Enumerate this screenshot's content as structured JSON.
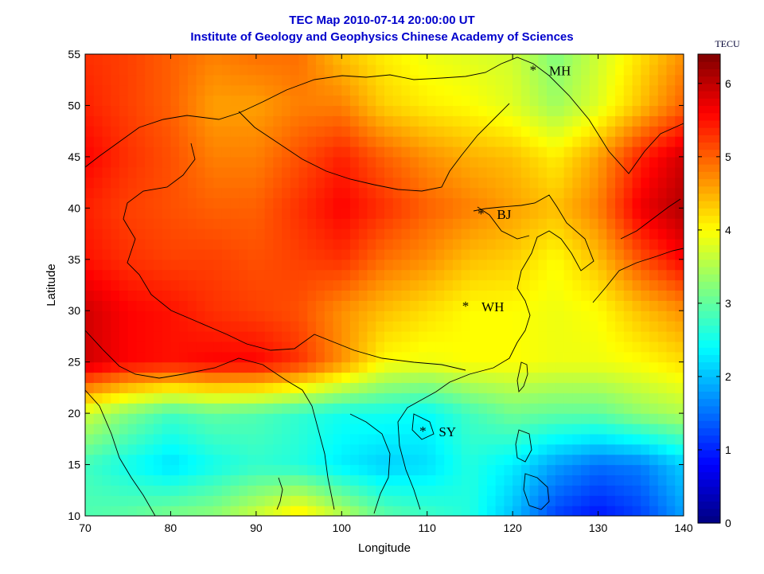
{
  "header": {
    "title": "TEC Map 2010-07-14 20:00:00 UT",
    "subtitle": "Institute of Geology and Geophysics Chinese Academy of Sciences"
  },
  "chart_data": {
    "type": "heatmap",
    "title": "TEC Map 2010-07-14 20:00:00 UT",
    "subtitle": "Institute of Geology and Geophysics Chinese Academy of Sciences",
    "xlabel": "Longitude",
    "ylabel": "Latitude",
    "xlim": [
      70,
      140
    ],
    "ylim": [
      10,
      55
    ],
    "xticks": [
      "70",
      "80",
      "90",
      "100",
      "110",
      "120",
      "130",
      "140"
    ],
    "yticks": [
      "10",
      "15",
      "20",
      "25",
      "30",
      "35",
      "40",
      "45",
      "50",
      "55"
    ],
    "colorbar": {
      "label": "TECU",
      "range": [
        0,
        6.4
      ],
      "ticks": [
        "0",
        "1",
        "2",
        "3",
        "4",
        "5",
        "6"
      ],
      "colormap": "jet"
    },
    "stations": [
      {
        "name": "MH",
        "lon": 122.4,
        "lat": 53.5
      },
      {
        "name": "BJ",
        "lon": 116.3,
        "lat": 39.5
      },
      {
        "name": "WH",
        "lon": 114.5,
        "lat": 30.5
      },
      {
        "name": "SY",
        "lon": 109.5,
        "lat": 18.3
      }
    ],
    "tec_grid": {
      "lon": [
        70,
        75,
        80,
        85,
        90,
        95,
        100,
        105,
        110,
        115,
        120,
        125,
        130,
        135,
        140
      ],
      "lat": [
        55,
        50,
        45,
        40,
        35,
        30,
        25,
        20,
        15,
        10
      ],
      "values": [
        [
          5.3,
          5.2,
          5.0,
          4.8,
          4.9,
          4.9,
          4.4,
          4.1,
          3.9,
          3.8,
          3.7,
          3.2,
          3.7,
          4.2,
          4.7
        ],
        [
          5.4,
          5.2,
          5.0,
          4.6,
          4.6,
          4.8,
          4.8,
          4.3,
          4.1,
          4.0,
          3.8,
          3.4,
          3.8,
          4.4,
          5.0
        ],
        [
          5.6,
          5.3,
          5.1,
          4.8,
          4.8,
          5.1,
          5.4,
          5.0,
          4.7,
          4.5,
          4.4,
          4.1,
          4.6,
          5.4,
          5.9
        ],
        [
          5.4,
          5.2,
          5.1,
          5.0,
          5.0,
          5.3,
          5.6,
          5.3,
          5.0,
          4.8,
          4.6,
          4.4,
          4.8,
          5.7,
          6.1
        ],
        [
          5.5,
          5.3,
          5.2,
          5.2,
          5.1,
          5.2,
          5.3,
          4.9,
          4.7,
          4.4,
          4.3,
          4.0,
          4.4,
          5.1,
          5.6
        ],
        [
          5.9,
          5.6,
          5.5,
          5.3,
          5.2,
          5.1,
          4.7,
          4.4,
          4.2,
          4.0,
          4.0,
          3.9,
          4.0,
          4.4,
          4.7
        ],
        [
          5.9,
          5.6,
          5.5,
          5.6,
          5.6,
          5.3,
          4.7,
          4.0,
          3.9,
          4.0,
          4.0,
          3.9,
          3.9,
          4.0,
          4.2
        ],
        [
          3.7,
          3.2,
          2.8,
          3.0,
          2.9,
          2.7,
          2.5,
          2.5,
          2.4,
          2.8,
          3.1,
          3.0,
          3.0,
          3.3,
          3.5
        ],
        [
          2.8,
          2.5,
          2.2,
          2.5,
          2.7,
          2.6,
          2.3,
          2.1,
          2.2,
          2.6,
          2.3,
          1.8,
          1.5,
          1.6,
          2.1
        ],
        [
          2.9,
          3.0,
          3.2,
          3.3,
          3.7,
          4.2,
          3.6,
          3.0,
          2.8,
          2.6,
          2.0,
          1.2,
          0.9,
          1.2,
          1.8
        ]
      ]
    }
  },
  "colors": {
    "title": "#0000cc",
    "axis": "#000000"
  }
}
